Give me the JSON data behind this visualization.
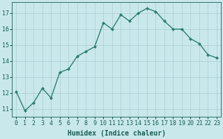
{
  "x": [
    0,
    1,
    2,
    3,
    4,
    5,
    6,
    7,
    8,
    9,
    10,
    11,
    12,
    13,
    14,
    15,
    16,
    17,
    18,
    19,
    20,
    21,
    22,
    23
  ],
  "y": [
    12.1,
    10.9,
    11.4,
    12.3,
    11.7,
    13.3,
    13.5,
    14.3,
    14.6,
    14.9,
    16.4,
    16.0,
    16.9,
    16.5,
    17.0,
    17.3,
    17.1,
    16.5,
    16.0,
    16.0,
    15.4,
    15.1,
    14.4,
    14.2
  ],
  "line_color": "#2e7d6e",
  "marker": "D",
  "marker_size": 2,
  "bg_color": "#c8e8ec",
  "grid_color": "#aaccd0",
  "xlabel": "Humidex (Indice chaleur)",
  "ylim": [
    10.5,
    17.7
  ],
  "yticks": [
    11,
    12,
    13,
    14,
    15,
    16,
    17
  ],
  "xticks": [
    0,
    1,
    2,
    3,
    4,
    5,
    6,
    7,
    8,
    9,
    10,
    11,
    12,
    13,
    14,
    15,
    16,
    17,
    18,
    19,
    20,
    21,
    22,
    23
  ],
  "xlabel_fontsize": 7,
  "tick_fontsize": 6,
  "tick_color": "#1a5c50",
  "spine_color": "#1a5c50",
  "linewidth": 1.0
}
